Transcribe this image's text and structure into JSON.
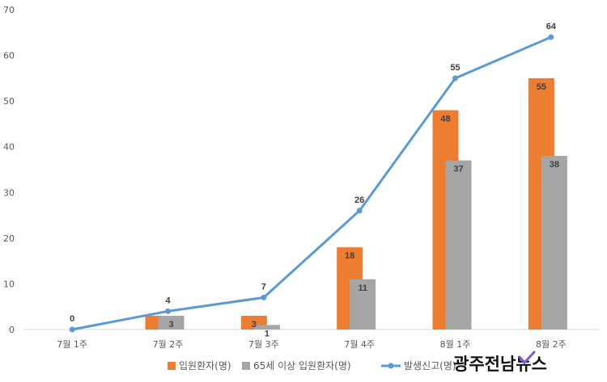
{
  "chart_data": {
    "type": "bar",
    "categories": [
      "7월 1주",
      "7월 2주",
      "7월 3주",
      "7월 4주",
      "8월 1주",
      "8월 2주"
    ],
    "series": [
      {
        "name": "입원환자(명)",
        "kind": "bar",
        "color": "#ED7D31",
        "values": [
          0,
          3,
          3,
          18,
          48,
          55
        ],
        "labels": [
          "",
          "",
          "3",
          "18",
          "48",
          "55"
        ]
      },
      {
        "name": "65세 이상 입원환자(명)",
        "kind": "bar",
        "color": "#A5A5A5",
        "values": [
          0,
          3,
          1,
          11,
          37,
          38
        ],
        "labels": [
          "",
          "3",
          "1",
          "11",
          "37",
          "38"
        ]
      },
      {
        "name": "발생신고(명)",
        "kind": "line",
        "color": "#5B9BD5",
        "values": [
          0,
          4,
          7,
          26,
          55,
          64
        ],
        "labels": [
          "0",
          "4",
          "7",
          "26",
          "55",
          "64"
        ]
      }
    ],
    "ylim": [
      0,
      70
    ],
    "yticks": [
      0,
      10,
      20,
      30,
      40,
      50,
      60,
      70
    ],
    "grid": false,
    "legend_position": "bottom",
    "title": "",
    "xlabel": "",
    "ylabel": ""
  },
  "watermark": {
    "text": "광주전남뉴스",
    "check_color": "#7B5BD6"
  }
}
